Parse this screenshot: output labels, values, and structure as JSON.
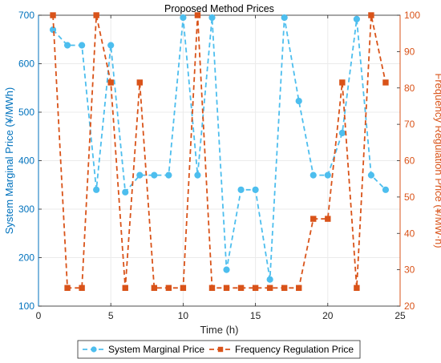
{
  "chart_data": {
    "type": "line",
    "title": "Proposed Method Prices",
    "xlabel": "Time (h)",
    "ylabel_left": "System Marginal Price (¥/MWh)",
    "ylabel_right": "Frequency Regulation Price (¥/MW·h)",
    "xlim": [
      0,
      25
    ],
    "ylim_left": [
      100,
      700
    ],
    "ylim_right": [
      20,
      100
    ],
    "x_ticks": [
      "0",
      "5",
      "10",
      "15",
      "20",
      "25"
    ],
    "y_left_ticks": [
      "100",
      "200",
      "300",
      "400",
      "500",
      "600",
      "700"
    ],
    "y_right_ticks": [
      "20",
      "30",
      "40",
      "50",
      "60",
      "70",
      "80",
      "90",
      "100"
    ],
    "grid": true,
    "legend_position": "bottom-outside",
    "x": [
      1,
      2,
      3,
      4,
      5,
      6,
      7,
      8,
      9,
      10,
      11,
      12,
      13,
      14,
      15,
      16,
      17,
      18,
      19,
      20,
      21,
      22,
      23,
      24
    ],
    "series": [
      {
        "name": "System Marginal Price",
        "axis": "left",
        "color": "#4DBEEE",
        "line_style": "dashed",
        "marker": "circle",
        "values": [
          670,
          638,
          638,
          340,
          638,
          335,
          370,
          370,
          370,
          695,
          370,
          695,
          175,
          340,
          340,
          155,
          695,
          523,
          370,
          370,
          457,
          692,
          370,
          340
        ]
      },
      {
        "name": "Frequency Regulation Price",
        "axis": "right",
        "color": "#D95319",
        "line_style": "dashed",
        "marker": "square",
        "values": [
          100,
          25,
          25,
          100,
          81.5,
          25,
          81.5,
          25,
          25,
          25,
          100,
          25,
          25,
          25,
          25,
          25,
          25,
          25,
          44,
          44,
          81.5,
          25,
          100,
          81.5
        ]
      }
    ]
  }
}
